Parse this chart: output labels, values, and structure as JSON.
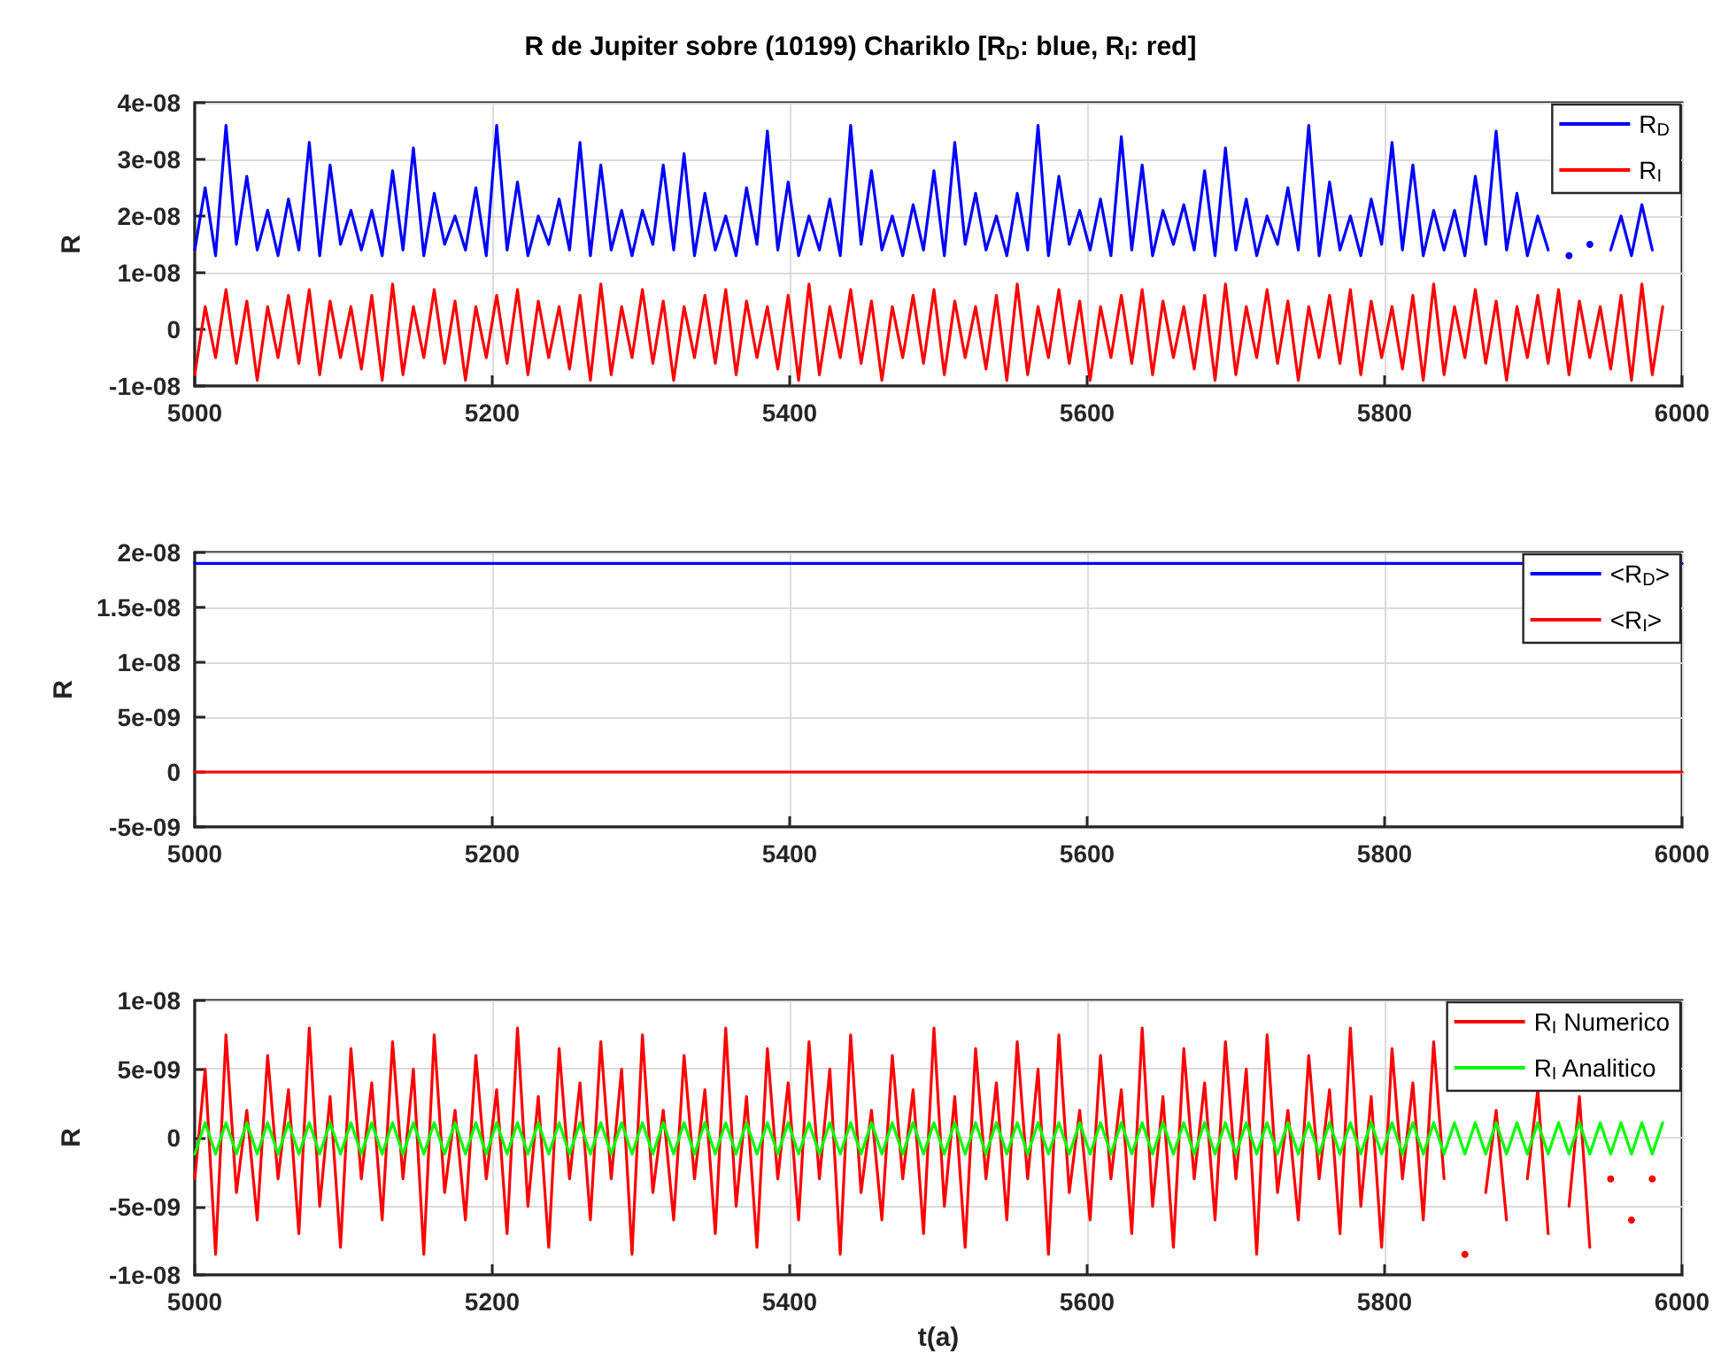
{
  "chart_data": [
    {
      "type": "line",
      "title": "R de Jupiter sobre (10199) Chariklo [R$_{D}$: blue, R$_{I}$: red]",
      "ylabel": "R",
      "grid": true,
      "legend": "top right",
      "xlim": [
        5000,
        6000
      ],
      "xticks": [
        5000,
        5200,
        5400,
        5600,
        5800,
        6000
      ],
      "ylim": [
        -1e-08,
        4e-08
      ],
      "yticks": [
        {
          "value": -1e-08,
          "label": "-1e-08"
        },
        {
          "value": 0,
          "label": "0"
        },
        {
          "value": 1e-08,
          "label": "1e-08"
        },
        {
          "value": 2e-08,
          "label": "2e-08"
        },
        {
          "value": 3e-08,
          "label": "3e-08"
        },
        {
          "value": 4e-08,
          "label": "4e-08"
        }
      ],
      "x": [
        5000,
        5007,
        5014,
        5021,
        5028,
        5035,
        5042,
        5049,
        5056,
        5063,
        5070,
        5077,
        5084,
        5091,
        5098,
        5105,
        5112,
        5119,
        5126,
        5133,
        5140,
        5147,
        5154,
        5161,
        5168,
        5175,
        5182,
        5189,
        5196,
        5203,
        5210,
        5217,
        5224,
        5231,
        5238,
        5245,
        5252,
        5259,
        5266,
        5273,
        5280,
        5287,
        5294,
        5301,
        5308,
        5315,
        5322,
        5329,
        5336,
        5343,
        5350,
        5357,
        5364,
        5371,
        5378,
        5385,
        5392,
        5399,
        5406,
        5413,
        5420,
        5427,
        5434,
        5441,
        5448,
        5455,
        5462,
        5469,
        5476,
        5483,
        5490,
        5497,
        5504,
        5511,
        5518,
        5525,
        5532,
        5539,
        5546,
        5553,
        5560,
        5567,
        5574,
        5581,
        5588,
        5595,
        5602,
        5609,
        5616,
        5623,
        5630,
        5637,
        5644,
        5651,
        5658,
        5665,
        5672,
        5679,
        5686,
        5693,
        5700,
        5707,
        5714,
        5721,
        5728,
        5735,
        5742,
        5749,
        5756,
        5763,
        5770,
        5777,
        5784,
        5791,
        5798,
        5805,
        5812,
        5819,
        5826,
        5833,
        5840,
        5847,
        5854,
        5861,
        5868,
        5875,
        5882,
        5889,
        5896,
        5903,
        5910,
        5917,
        5924,
        5931,
        5938,
        5945,
        5952,
        5959,
        5966,
        5973,
        5980,
        5987
      ],
      "series": [
        {
          "name": "R$_{D}$",
          "color": "#0000ff",
          "values": [
            1.4e-08,
            2.5e-08,
            1.3e-08,
            3.6e-08,
            1.5e-08,
            2.7e-08,
            1.4e-08,
            2.1e-08,
            1.3e-08,
            2.3e-08,
            1.4e-08,
            3.3e-08,
            1.3e-08,
            2.9e-08,
            1.5e-08,
            2.1e-08,
            1.4e-08,
            2.1e-08,
            1.3e-08,
            2.8e-08,
            1.4e-08,
            3.2e-08,
            1.3e-08,
            2.4e-08,
            1.5e-08,
            2e-08,
            1.4e-08,
            2.5e-08,
            1.3e-08,
            3.6e-08,
            1.4e-08,
            2.6e-08,
            1.3e-08,
            2e-08,
            1.5e-08,
            2.3e-08,
            1.4e-08,
            3.3e-08,
            1.3e-08,
            2.9e-08,
            1.4e-08,
            2.1e-08,
            1.3e-08,
            2.1e-08,
            1.5e-08,
            2.9e-08,
            1.4e-08,
            3.1e-08,
            1.3e-08,
            2.4e-08,
            1.4e-08,
            2e-08,
            1.3e-08,
            2.5e-08,
            1.5e-08,
            3.5e-08,
            1.4e-08,
            2.6e-08,
            1.3e-08,
            2e-08,
            1.4e-08,
            2.3e-08,
            1.3e-08,
            3.6e-08,
            1.5e-08,
            2.8e-08,
            1.4e-08,
            2e-08,
            1.3e-08,
            2.2e-08,
            1.4e-08,
            2.8e-08,
            1.3e-08,
            3.3e-08,
            1.5e-08,
            2.4e-08,
            1.4e-08,
            2e-08,
            1.3e-08,
            2.4e-08,
            1.4e-08,
            3.6e-08,
            1.3e-08,
            2.7e-08,
            1.5e-08,
            2.1e-08,
            1.4e-08,
            2.3e-08,
            1.3e-08,
            3.4e-08,
            1.4e-08,
            2.9e-08,
            1.3e-08,
            2.1e-08,
            1.5e-08,
            2.2e-08,
            1.4e-08,
            2.8e-08,
            1.3e-08,
            3.2e-08,
            1.4e-08,
            2.3e-08,
            1.3e-08,
            2e-08,
            1.5e-08,
            2.5e-08,
            1.4e-08,
            3.6e-08,
            1.3e-08,
            2.6e-08,
            1.4e-08,
            2e-08,
            1.3e-08,
            2.3e-08,
            1.5e-08,
            3.3e-08,
            1.4e-08,
            2.9e-08,
            1.3e-08,
            2.1e-08,
            1.4e-08,
            2.1e-08,
            1.3e-08,
            2.7e-08,
            1.5e-08,
            3.5e-08,
            1.4e-08,
            2.4e-08,
            1.3e-08,
            2e-08,
            1.4e-08,
            null,
            1.3e-08,
            null,
            1.5e-08,
            null,
            1.4e-08,
            2e-08,
            1.3e-08,
            2.2e-08,
            1.4e-08,
            null
          ]
        },
        {
          "name": "R$_{I}$",
          "color": "#ff0000",
          "values": [
            -8e-09,
            4e-09,
            -5e-09,
            7e-09,
            -6e-09,
            5e-09,
            -9e-09,
            4e-09,
            -5e-09,
            6e-09,
            -6e-09,
            7e-09,
            -8e-09,
            5e-09,
            -5e-09,
            4e-09,
            -7e-09,
            6e-09,
            -9e-09,
            8e-09,
            -8e-09,
            4e-09,
            -5e-09,
            7e-09,
            -6e-09,
            5e-09,
            -9e-09,
            4e-09,
            -5e-09,
            6e-09,
            -6e-09,
            7e-09,
            -8e-09,
            5e-09,
            -5e-09,
            4e-09,
            -7e-09,
            6e-09,
            -9e-09,
            8e-09,
            -8e-09,
            4e-09,
            -5e-09,
            7e-09,
            -6e-09,
            5e-09,
            -9e-09,
            4e-09,
            -5e-09,
            6e-09,
            -6e-09,
            7e-09,
            -8e-09,
            5e-09,
            -5e-09,
            4e-09,
            -7e-09,
            6e-09,
            -9e-09,
            8e-09,
            -8e-09,
            4e-09,
            -5e-09,
            7e-09,
            -6e-09,
            5e-09,
            -9e-09,
            4e-09,
            -5e-09,
            6e-09,
            -6e-09,
            7e-09,
            -8e-09,
            5e-09,
            -5e-09,
            4e-09,
            -7e-09,
            6e-09,
            -9e-09,
            8e-09,
            -8e-09,
            4e-09,
            -5e-09,
            7e-09,
            -6e-09,
            5e-09,
            -9e-09,
            4e-09,
            -5e-09,
            6e-09,
            -6e-09,
            7e-09,
            -8e-09,
            5e-09,
            -5e-09,
            4e-09,
            -7e-09,
            6e-09,
            -9e-09,
            8e-09,
            -8e-09,
            4e-09,
            -5e-09,
            7e-09,
            -6e-09,
            5e-09,
            -9e-09,
            4e-09,
            -5e-09,
            6e-09,
            -6e-09,
            7e-09,
            -8e-09,
            5e-09,
            -5e-09,
            4e-09,
            -7e-09,
            6e-09,
            -9e-09,
            8e-09,
            -8e-09,
            4e-09,
            -5e-09,
            7e-09,
            -6e-09,
            5e-09,
            -9e-09,
            4e-09,
            -5e-09,
            6e-09,
            -6e-09,
            7e-09,
            -8e-09,
            5e-09,
            -5e-09,
            4e-09,
            -7e-09,
            6e-09,
            -9e-09,
            8e-09,
            -8e-09,
            4e-09
          ]
        }
      ]
    },
    {
      "type": "line",
      "ylabel": "R",
      "grid": true,
      "legend": "top right",
      "xlim": [
        5000,
        6000
      ],
      "xticks": [
        5000,
        5200,
        5400,
        5600,
        5800,
        6000
      ],
      "ylim": [
        -5e-09,
        2e-08
      ],
      "yticks": [
        {
          "value": -5e-09,
          "label": "-5e-09"
        },
        {
          "value": 0,
          "label": "0"
        },
        {
          "value": 5e-09,
          "label": "5e-09"
        },
        {
          "value": 1e-08,
          "label": "1e-08"
        },
        {
          "value": 1.5e-08,
          "label": "1.5e-08"
        },
        {
          "value": 2e-08,
          "label": "2e-08"
        }
      ],
      "x": [
        5000,
        6000
      ],
      "series": [
        {
          "name": "<R$_{D}$>",
          "color": "#0000ff",
          "values": [
            1.9e-08,
            1.9e-08
          ]
        },
        {
          "name": "<R$_{I}$>",
          "color": "#ff0000",
          "values": [
            0,
            0
          ]
        }
      ]
    },
    {
      "type": "line",
      "ylabel": "R",
      "xlabel": "t(a)",
      "grid": true,
      "legend": "top right",
      "xlim": [
        5000,
        6000
      ],
      "xticks": [
        5000,
        5200,
        5400,
        5600,
        5800,
        6000
      ],
      "ylim": [
        -1e-08,
        1e-08
      ],
      "yticks": [
        {
          "value": -1e-08,
          "label": "-1e-08"
        },
        {
          "value": -5e-09,
          "label": "-5e-09"
        },
        {
          "value": 0,
          "label": "0"
        },
        {
          "value": 5e-09,
          "label": "5e-09"
        },
        {
          "value": 1e-08,
          "label": "1e-08"
        }
      ],
      "x": [
        5000,
        5007,
        5014,
        5021,
        5028,
        5035,
        5042,
        5049,
        5056,
        5063,
        5070,
        5077,
        5084,
        5091,
        5098,
        5105,
        5112,
        5119,
        5126,
        5133,
        5140,
        5147,
        5154,
        5161,
        5168,
        5175,
        5182,
        5189,
        5196,
        5203,
        5210,
        5217,
        5224,
        5231,
        5238,
        5245,
        5252,
        5259,
        5266,
        5273,
        5280,
        5287,
        5294,
        5301,
        5308,
        5315,
        5322,
        5329,
        5336,
        5343,
        5350,
        5357,
        5364,
        5371,
        5378,
        5385,
        5392,
        5399,
        5406,
        5413,
        5420,
        5427,
        5434,
        5441,
        5448,
        5455,
        5462,
        5469,
        5476,
        5483,
        5490,
        5497,
        5504,
        5511,
        5518,
        5525,
        5532,
        5539,
        5546,
        5553,
        5560,
        5567,
        5574,
        5581,
        5588,
        5595,
        5602,
        5609,
        5616,
        5623,
        5630,
        5637,
        5644,
        5651,
        5658,
        5665,
        5672,
        5679,
        5686,
        5693,
        5700,
        5707,
        5714,
        5721,
        5728,
        5735,
        5742,
        5749,
        5756,
        5763,
        5770,
        5777,
        5784,
        5791,
        5798,
        5805,
        5812,
        5819,
        5826,
        5833,
        5840,
        5847,
        5854,
        5861,
        5868,
        5875,
        5882,
        5889,
        5896,
        5903,
        5910,
        5917,
        5924,
        5931,
        5938,
        5945,
        5952,
        5959,
        5966,
        5973,
        5980,
        5987
      ],
      "series": [
        {
          "name": "R$_{I}$ Numerico",
          "color": "#ff0000",
          "values": [
            -3e-09,
            5e-09,
            -8.5e-09,
            7.5e-09,
            -4e-09,
            2e-09,
            -6e-09,
            6e-09,
            -3e-09,
            3.5e-09,
            -7e-09,
            8e-09,
            -5e-09,
            3e-09,
            -8e-09,
            6.5e-09,
            -3e-09,
            4e-09,
            -6e-09,
            7e-09,
            -3e-09,
            5e-09,
            -8.5e-09,
            7.5e-09,
            -4e-09,
            2e-09,
            -6e-09,
            6e-09,
            -3e-09,
            3.5e-09,
            -7e-09,
            8e-09,
            -5e-09,
            3e-09,
            -8e-09,
            6.5e-09,
            -3e-09,
            4e-09,
            -6e-09,
            7e-09,
            -3e-09,
            5e-09,
            -8.5e-09,
            7.5e-09,
            -4e-09,
            2e-09,
            -6e-09,
            6e-09,
            -3e-09,
            3.5e-09,
            -7e-09,
            8e-09,
            -5e-09,
            3e-09,
            -8e-09,
            6.5e-09,
            -3e-09,
            4e-09,
            -6e-09,
            7e-09,
            -3e-09,
            5e-09,
            -8.5e-09,
            7.5e-09,
            -4e-09,
            2e-09,
            -6e-09,
            6e-09,
            -3e-09,
            3.5e-09,
            -7e-09,
            8e-09,
            -5e-09,
            3e-09,
            -8e-09,
            6.5e-09,
            -3e-09,
            4e-09,
            -6e-09,
            7e-09,
            -3e-09,
            5e-09,
            -8.5e-09,
            7.5e-09,
            -4e-09,
            2e-09,
            -6e-09,
            6e-09,
            -3e-09,
            3.5e-09,
            -7e-09,
            8e-09,
            -5e-09,
            3e-09,
            -8e-09,
            6.5e-09,
            -3e-09,
            4e-09,
            -6e-09,
            7e-09,
            -3e-09,
            5e-09,
            -8.5e-09,
            7.5e-09,
            -4e-09,
            2e-09,
            -6e-09,
            6e-09,
            -3e-09,
            3.5e-09,
            -7e-09,
            8e-09,
            -5e-09,
            3e-09,
            -8e-09,
            6.5e-09,
            -3e-09,
            4e-09,
            -6e-09,
            7e-09,
            -3e-09,
            null,
            -8.5e-09,
            null,
            -4e-09,
            2e-09,
            -6e-09,
            null,
            -3e-09,
            3.5e-09,
            -7e-09,
            null,
            -5e-09,
            3e-09,
            -8e-09,
            null,
            -3e-09,
            null,
            -6e-09,
            null,
            -3e-09,
            null
          ]
        },
        {
          "name": "R$_{I}$ Analitico",
          "color": "#00ff00",
          "values": [
            -1.2e-09,
            1.1e-09,
            -1.2e-09,
            1.1e-09,
            -1.2e-09,
            1.1e-09,
            -1.2e-09,
            1.1e-09,
            -1.2e-09,
            1.1e-09,
            -1.2e-09,
            1.1e-09,
            -1.2e-09,
            1.1e-09,
            -1.2e-09,
            1.1e-09,
            -1.2e-09,
            1.1e-09,
            -1.2e-09,
            1.1e-09,
            -1.2e-09,
            1.1e-09,
            -1.2e-09,
            1.1e-09,
            -1.2e-09,
            1.1e-09,
            -1.2e-09,
            1.1e-09,
            -1.2e-09,
            1.1e-09,
            -1.2e-09,
            1.1e-09,
            -1.2e-09,
            1.1e-09,
            -1.2e-09,
            1.1e-09,
            -1.2e-09,
            1.1e-09,
            -1.2e-09,
            1.1e-09,
            -1.2e-09,
            1.1e-09,
            -1.2e-09,
            1.1e-09,
            -1.2e-09,
            1.1e-09,
            -1.2e-09,
            1.1e-09,
            -1.2e-09,
            1.1e-09,
            -1.2e-09,
            1.1e-09,
            -1.2e-09,
            1.1e-09,
            -1.2e-09,
            1.1e-09,
            -1.2e-09,
            1.1e-09,
            -1.2e-09,
            1.1e-09,
            -1.2e-09,
            1.1e-09,
            -1.2e-09,
            1.1e-09,
            -1.2e-09,
            1.1e-09,
            -1.2e-09,
            1.1e-09,
            -1.2e-09,
            1.1e-09,
            -1.2e-09,
            1.1e-09,
            -1.2e-09,
            1.1e-09,
            -1.2e-09,
            1.1e-09,
            -1.2e-09,
            1.1e-09,
            -1.2e-09,
            1.1e-09,
            -1.2e-09,
            1.1e-09,
            -1.2e-09,
            1.1e-09,
            -1.2e-09,
            1.1e-09,
            -1.2e-09,
            1.1e-09,
            -1.2e-09,
            1.1e-09,
            -1.2e-09,
            1.1e-09,
            -1.2e-09,
            1.1e-09,
            -1.2e-09,
            1.1e-09,
            -1.2e-09,
            1.1e-09,
            -1.2e-09,
            1.1e-09,
            -1.2e-09,
            1.1e-09,
            -1.2e-09,
            1.1e-09,
            -1.2e-09,
            1.1e-09,
            -1.2e-09,
            1.1e-09,
            -1.2e-09,
            1.1e-09,
            -1.2e-09,
            1.1e-09,
            -1.2e-09,
            1.1e-09,
            -1.2e-09,
            1.1e-09,
            -1.2e-09,
            1.1e-09,
            -1.2e-09,
            1.1e-09,
            -1.2e-09,
            1.1e-09,
            -1.2e-09,
            1.1e-09,
            -1.2e-09,
            1.1e-09,
            -1.2e-09,
            1.1e-09,
            -1.2e-09,
            1.1e-09,
            -1.2e-09,
            1.1e-09,
            -1.2e-09,
            1.1e-09,
            -1.2e-09,
            1.1e-09,
            -1.2e-09,
            1.1e-09,
            -1.2e-09,
            1.1e-09,
            -1.2e-09,
            1.1e-09
          ]
        }
      ]
    }
  ]
}
